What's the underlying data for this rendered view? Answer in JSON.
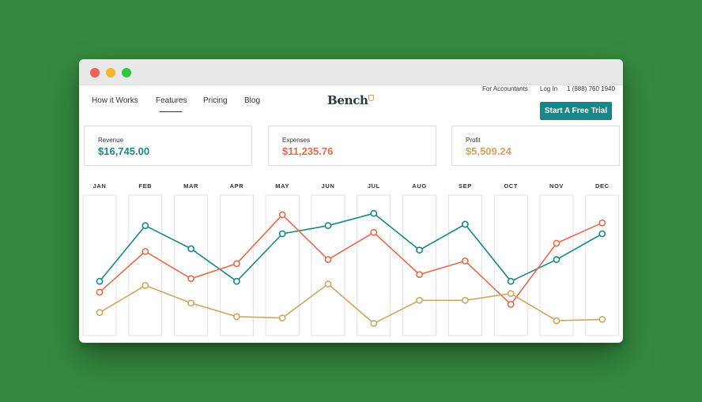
{
  "nav": {
    "items": [
      "How it Works",
      "Features",
      "Pricing",
      "Blog"
    ],
    "active": "Features"
  },
  "logo": {
    "text": "Bench"
  },
  "top_links": {
    "accountants": "For Accountants",
    "login": "Log In",
    "phone": "1 (888) 760 1940"
  },
  "cta": {
    "label": "Start A Free Trial",
    "color": "#17878a"
  },
  "summary": {
    "revenue": {
      "label": "Revenue",
      "value": "$16,745.00",
      "color": "#17878a"
    },
    "expenses": {
      "label": "Expenses",
      "value": "$11,235.76",
      "color": "#e8694a"
    },
    "profit": {
      "label": "Profit",
      "value": "$5,509.24",
      "color": "#d3a45f"
    }
  },
  "chart_data": {
    "type": "line",
    "categories": [
      "JAN",
      "FEB",
      "MAR",
      "APR",
      "MAY",
      "JUN",
      "JUL",
      "AUG",
      "SEP",
      "OCT",
      "NOV",
      "DEC"
    ],
    "series": [
      {
        "key": "revenue",
        "color": "#17878a",
        "values": [
          40,
          81,
          64,
          40,
          75,
          81,
          90,
          63,
          82,
          40,
          56,
          75
        ]
      },
      {
        "key": "expenses",
        "color": "#e8694a",
        "values": [
          32,
          62,
          42,
          53,
          89,
          56,
          76,
          45,
          55,
          23,
          68,
          83
        ]
      },
      {
        "key": "profit",
        "color": "#d3a45f",
        "values": [
          17,
          37,
          24,
          14,
          13,
          38,
          9,
          26,
          26,
          31,
          11,
          12
        ]
      }
    ],
    "ylim": [
      0,
      100
    ],
    "grid": false
  }
}
